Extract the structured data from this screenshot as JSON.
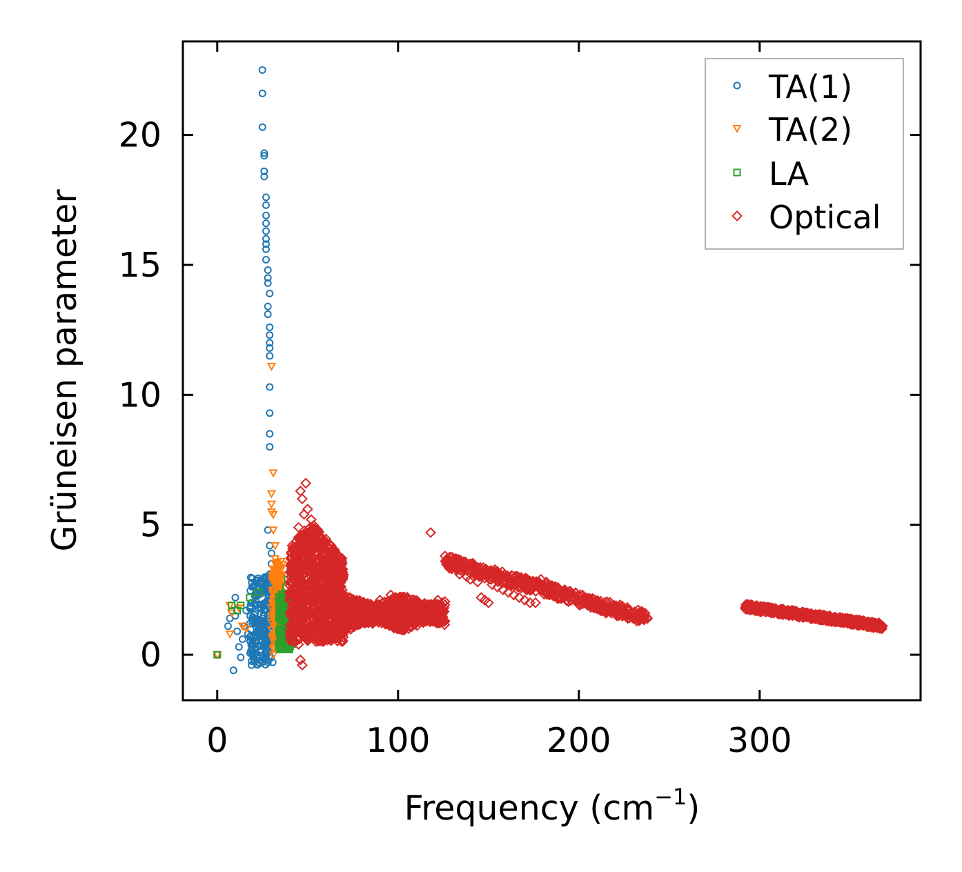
{
  "chart_data": {
    "type": "scatter",
    "title": "",
    "xlabel": "Frequency (cm",
    "xlabel_sup": "−1",
    "xlabel_end": ")",
    "ylabel": "Grüneisen parameter",
    "xlim": [
      -19,
      389
    ],
    "ylim": [
      -1.75,
      23.6
    ],
    "xticks": [
      0,
      100,
      200,
      300
    ],
    "xtick_labels": [
      "0",
      "100",
      "200",
      "300"
    ],
    "yticks": [
      0,
      5,
      10,
      15,
      20
    ],
    "ytick_labels": [
      "0",
      "5",
      "10",
      "15",
      "20"
    ],
    "grid": false,
    "legend_position": "top-right",
    "series": [
      {
        "name": "TA(1)",
        "marker": "circle",
        "color": "#1f77b4",
        "points": [
          [
            0,
            0
          ],
          [
            9,
            -0.6
          ],
          [
            10,
            2.2
          ],
          [
            10,
            1.5
          ],
          [
            11,
            0.9
          ],
          [
            12,
            0.3
          ],
          [
            13,
            -0.1
          ],
          [
            14,
            0.6
          ],
          [
            15,
            1.1
          ],
          [
            16,
            1.7
          ],
          [
            17,
            0.8
          ],
          [
            18,
            1.2
          ],
          [
            19,
            -0.4
          ],
          [
            20,
            0.4
          ],
          [
            21,
            1.9
          ],
          [
            22,
            0.7
          ],
          [
            23,
            -0.3
          ],
          [
            24,
            0.2
          ],
          [
            25,
            1.4
          ],
          [
            26,
            0.9
          ],
          [
            7,
            1.4
          ],
          [
            8,
            1.7
          ],
          [
            6,
            1.1
          ],
          [
            19,
            2.0
          ],
          [
            21,
            1.6
          ],
          [
            23,
            1.0
          ],
          [
            24,
            1.8
          ],
          [
            25,
            22.5
          ],
          [
            25,
            21.6
          ],
          [
            25,
            20.3
          ],
          [
            26,
            19.3
          ],
          [
            26,
            19.2
          ],
          [
            26,
            18.6
          ],
          [
            26,
            18.4
          ],
          [
            27,
            17.6
          ],
          [
            27,
            17.3
          ],
          [
            27,
            16.9
          ],
          [
            27,
            16.6
          ],
          [
            27,
            16.3
          ],
          [
            27,
            16.0
          ],
          [
            27,
            15.8
          ],
          [
            27,
            15.6
          ],
          [
            27,
            15.2
          ],
          [
            28,
            14.8
          ],
          [
            28,
            14.5
          ],
          [
            28,
            14.3
          ],
          [
            29,
            13.9
          ],
          [
            28,
            13.4
          ],
          [
            28,
            13.1
          ],
          [
            29,
            12.6
          ],
          [
            29,
            12.3
          ],
          [
            29,
            12.0
          ],
          [
            29,
            11.8
          ],
          [
            29,
            11.5
          ],
          [
            29,
            10.3
          ],
          [
            29,
            9.3
          ],
          [
            29,
            8.5
          ],
          [
            29,
            8.0
          ],
          [
            28,
            4.8
          ],
          [
            29,
            4.2
          ],
          [
            30,
            3.9
          ],
          [
            30,
            3.5
          ],
          [
            29,
            3.1
          ],
          [
            28,
            2.7
          ],
          [
            29,
            2.4
          ],
          [
            30,
            2.2
          ],
          [
            29,
            1.9
          ],
          [
            28,
            1.5
          ],
          [
            27,
            1.2
          ],
          [
            26,
            0.8
          ],
          [
            25,
            0.5
          ],
          [
            24,
            0.1
          ],
          [
            27,
            -0.2
          ],
          [
            28,
            0.3
          ],
          [
            30,
            1.0
          ],
          [
            31,
            2.0
          ],
          [
            31,
            3.0
          ],
          [
            30,
            0.6
          ]
        ]
      },
      {
        "name": "TA(2)",
        "marker": "triangle-down",
        "color": "#ff7f0e",
        "points": [
          [
            0,
            0
          ],
          [
            7,
            1.9
          ],
          [
            8,
            1.6
          ],
          [
            7,
            0.8
          ],
          [
            12,
            1.8
          ],
          [
            14,
            1.1
          ],
          [
            16,
            1.0
          ],
          [
            30,
            11.1
          ],
          [
            31,
            7.0
          ],
          [
            30,
            6.2
          ],
          [
            30,
            5.8
          ],
          [
            30,
            5.5
          ],
          [
            31,
            5.4
          ],
          [
            31,
            4.8
          ],
          [
            32,
            4.2
          ],
          [
            32,
            3.7
          ],
          [
            31,
            3.3
          ],
          [
            32,
            2.9
          ],
          [
            33,
            2.5
          ],
          [
            32,
            2.1
          ],
          [
            33,
            1.8
          ],
          [
            31,
            1.4
          ],
          [
            32,
            1.1
          ],
          [
            33,
            0.8
          ],
          [
            34,
            0.5
          ],
          [
            33,
            0.3
          ],
          [
            31,
            0.0
          ],
          [
            34,
            1.6
          ],
          [
            35,
            2.3
          ],
          [
            34,
            3.0
          ]
        ]
      },
      {
        "name": "LA",
        "marker": "square",
        "color": "#2ca02c",
        "points": [
          [
            0,
            0
          ],
          [
            8,
            1.9
          ],
          [
            11,
            1.7
          ],
          [
            13,
            1.9
          ],
          [
            18,
            2.2
          ],
          [
            23,
            2.4
          ],
          [
            35,
            0.2
          ],
          [
            35,
            0.6
          ],
          [
            36,
            1.0
          ],
          [
            36,
            1.4
          ],
          [
            37,
            1.8
          ],
          [
            37,
            2.2
          ],
          [
            38,
            2.6
          ],
          [
            39,
            2.9
          ],
          [
            38,
            0.4
          ],
          [
            39,
            1.2
          ],
          [
            40,
            1.6
          ],
          [
            40,
            2.0
          ],
          [
            41,
            0.8
          ],
          [
            41,
            1.5
          ],
          [
            42,
            1.9
          ],
          [
            39,
            0.3
          ],
          [
            37,
            0.5
          ],
          [
            36,
            0.3
          ],
          [
            40,
            0.6
          ]
        ]
      },
      {
        "name": "Optical",
        "marker": "diamond",
        "color": "#d62728",
        "points": [
          [
            46,
            6.3
          ],
          [
            47,
            6.0
          ],
          [
            49,
            6.6
          ],
          [
            48,
            5.4
          ],
          [
            50,
            5.6
          ],
          [
            52,
            5.2
          ],
          [
            45,
            4.9
          ],
          [
            47,
            4.5
          ],
          [
            49,
            4.0
          ],
          [
            51,
            3.6
          ],
          [
            53,
            3.1
          ],
          [
            55,
            4.6
          ],
          [
            57,
            4.2
          ],
          [
            59,
            3.9
          ],
          [
            61,
            3.5
          ],
          [
            63,
            3.0
          ],
          [
            65,
            3.8
          ],
          [
            67,
            2.6
          ],
          [
            69,
            2.2
          ],
          [
            45,
            0.4
          ],
          [
            46,
            -0.2
          ],
          [
            47,
            -0.4
          ],
          [
            48,
            1.0
          ],
          [
            50,
            1.5
          ],
          [
            52,
            2.0
          ],
          [
            54,
            2.5
          ],
          [
            56,
            1.2
          ],
          [
            58,
            0.8
          ],
          [
            60,
            1.4
          ],
          [
            62,
            2.0
          ],
          [
            64,
            1.8
          ],
          [
            66,
            1.0
          ],
          [
            68,
            0.7
          ],
          [
            70,
            1.4
          ],
          [
            72,
            1.9
          ],
          [
            74,
            1.5
          ],
          [
            76,
            1.1
          ],
          [
            78,
            1.6
          ],
          [
            80,
            2.0
          ],
          [
            82,
            1.4
          ],
          [
            84,
            1.8
          ],
          [
            86,
            1.2
          ],
          [
            88,
            1.7
          ],
          [
            90,
            2.1
          ],
          [
            92,
            1.5
          ],
          [
            94,
            1.9
          ],
          [
            96,
            2.3
          ],
          [
            98,
            1.7
          ],
          [
            100,
            1.3
          ],
          [
            102,
            2.2
          ],
          [
            104,
            1.6
          ],
          [
            106,
            1.9
          ],
          [
            108,
            1.4
          ],
          [
            110,
            1.8
          ],
          [
            112,
            1.5
          ],
          [
            114,
            1.3
          ],
          [
            116,
            1.7
          ],
          [
            118,
            1.4
          ],
          [
            120,
            1.8
          ],
          [
            122,
            2.1
          ],
          [
            124,
            1.9
          ],
          [
            118,
            4.7
          ],
          [
            126,
            3.8
          ],
          [
            128,
            3.6
          ],
          [
            130,
            3.5
          ],
          [
            132,
            3.3
          ],
          [
            134,
            3.1
          ],
          [
            136,
            3.2
          ],
          [
            138,
            3.0
          ],
          [
            140,
            2.9
          ],
          [
            142,
            3.0
          ],
          [
            144,
            2.8
          ],
          [
            146,
            2.2
          ],
          [
            148,
            2.1
          ],
          [
            150,
            2.0
          ],
          [
            152,
            2.7
          ],
          [
            155,
            2.6
          ],
          [
            158,
            2.5
          ],
          [
            161,
            2.4
          ],
          [
            164,
            2.3
          ],
          [
            167,
            2.2
          ],
          [
            170,
            2.1
          ],
          [
            173,
            2.0
          ],
          [
            176,
            2.0
          ],
          [
            179,
            2.9
          ],
          [
            182,
            2.8
          ],
          [
            185,
            2.6
          ],
          [
            188,
            2.5
          ],
          [
            191,
            2.4
          ],
          [
            194,
            2.3
          ],
          [
            197,
            2.2
          ],
          [
            200,
            2.1
          ],
          [
            203,
            2.0
          ],
          [
            206,
            1.9
          ],
          [
            209,
            1.8
          ],
          [
            212,
            1.7
          ],
          [
            215,
            1.6
          ],
          [
            218,
            1.6
          ],
          [
            221,
            1.5
          ],
          [
            224,
            1.5
          ],
          [
            227,
            1.4
          ],
          [
            230,
            1.4
          ],
          [
            233,
            1.4
          ],
          [
            236,
            1.4
          ],
          [
            238,
            1.4
          ],
          [
            292,
            1.8
          ],
          [
            296,
            1.9
          ],
          [
            300,
            1.8
          ],
          [
            304,
            1.7
          ],
          [
            308,
            1.7
          ],
          [
            312,
            1.6
          ],
          [
            316,
            1.6
          ],
          [
            320,
            1.5
          ],
          [
            324,
            1.5
          ],
          [
            328,
            1.4
          ],
          [
            332,
            1.4
          ],
          [
            336,
            1.4
          ],
          [
            340,
            1.4
          ],
          [
            344,
            1.3
          ],
          [
            348,
            1.3
          ],
          [
            352,
            1.3
          ],
          [
            356,
            1.2
          ],
          [
            360,
            1.2
          ],
          [
            364,
            1.2
          ],
          [
            368,
            1.1
          ]
        ]
      }
    ],
    "dense_regions": [
      {
        "series": "TA(1)",
        "x_range": [
          18,
          31
        ],
        "y_range": [
          -0.4,
          3.0
        ],
        "count": 220
      },
      {
        "series": "TA(2)",
        "x_range": [
          30,
          36
        ],
        "y_range": [
          0.2,
          3.6
        ],
        "count": 140
      },
      {
        "series": "LA",
        "x_range": [
          34,
          42
        ],
        "y_range": [
          0.2,
          2.4
        ],
        "count": 160
      },
      {
        "series": "Optical",
        "x_range": [
          40,
          70
        ],
        "y_range": [
          0.4,
          4.6
        ],
        "count": 900
      },
      {
        "series": "Optical",
        "x_range": [
          68,
          126
        ],
        "y_range": [
          1.0,
          2.2
        ],
        "count": 700
      },
      {
        "series": "Optical",
        "x_range": [
          126,
          238
        ],
        "y_range": [
          1.4,
          3.6
        ],
        "count": 450
      },
      {
        "series": "Optical",
        "x_range": [
          292,
          368
        ],
        "y_range": [
          1.1,
          1.9
        ],
        "count": 500
      }
    ]
  }
}
